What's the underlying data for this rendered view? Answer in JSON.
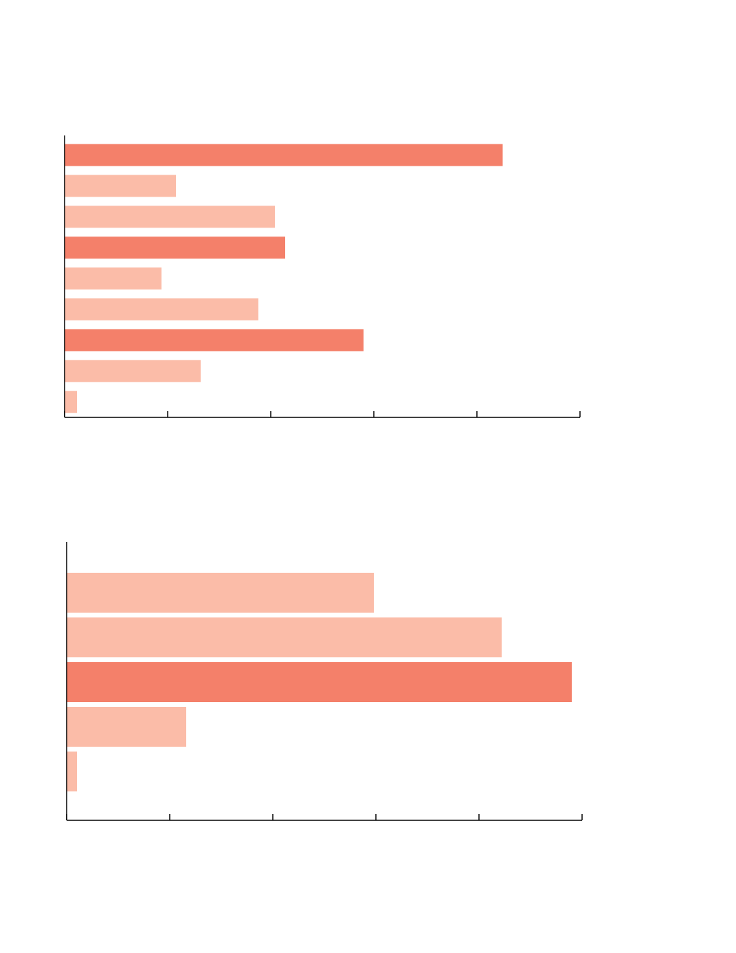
{
  "chart_data": [
    {
      "type": "bar",
      "orientation": "horizontal",
      "categories": [
        null,
        null,
        null,
        null,
        null,
        null,
        null,
        null,
        null
      ],
      "values": [
        4.25,
        1.08,
        2.04,
        2.14,
        0.94,
        1.88,
        2.9,
        1.32,
        0.12
      ],
      "colors": [
        "#f4806a",
        "#fbbca8",
        "#fbbca8",
        "#f4806a",
        "#fbbca8",
        "#fbbca8",
        "#f4806a",
        "#fbbca8",
        "#fbbca8"
      ],
      "xlim": [
        0,
        5
      ],
      "xticks": [
        0,
        1,
        2,
        3,
        4,
        5
      ]
    },
    {
      "type": "bar",
      "orientation": "horizontal",
      "categories": [
        null,
        null,
        null,
        null,
        null
      ],
      "values": [
        2.98,
        4.22,
        4.9,
        1.16,
        0.1
      ],
      "colors": [
        "#fbbca8",
        "#fbbca8",
        "#f4806a",
        "#fbbca8",
        "#fbbca8"
      ],
      "xlim": [
        0,
        5
      ],
      "xticks": [
        0,
        1,
        2,
        3,
        4,
        5
      ]
    }
  ]
}
